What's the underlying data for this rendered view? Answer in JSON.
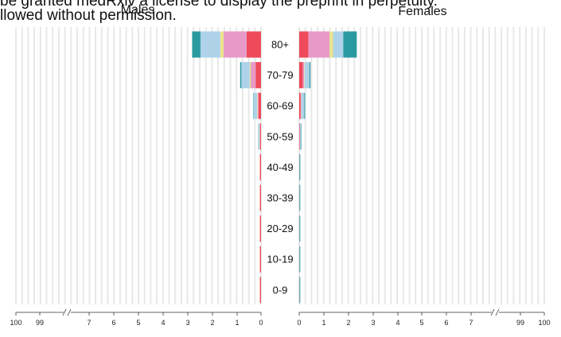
{
  "notice_lines": [
    "be granted medRxiv a license to display the preprint in perpetuity.",
    "llowed without permission."
  ],
  "chart_data": {
    "type": "bar",
    "subtype": "population-pyramid-stacked",
    "panels": [
      "Males",
      "Females"
    ],
    "categories": [
      "80+",
      "70-79",
      "60-69",
      "50-59",
      "40-49",
      "30-39",
      "20-29",
      "10-19",
      "0-9"
    ],
    "x_ticks": [
      "100",
      "99",
      "7",
      "6",
      "5",
      "4",
      "3",
      "2",
      "1",
      "0"
    ],
    "axis_break_between": [
      "99",
      "7"
    ],
    "grid": true,
    "series_colors": [
      "#ef4a5a",
      "#e89ac7",
      "#e8e48a",
      "#aed3e9",
      "#2b9aa0"
    ],
    "males": [
      [
        0.59,
        0.94,
        0.13,
        0.81,
        0.34
      ],
      [
        0.22,
        0.2,
        0.04,
        0.34,
        0.05
      ],
      [
        0.1,
        0.04,
        0.02,
        0.13,
        0.02
      ],
      [
        0.04,
        0.01,
        0.01,
        0.04,
        0.01
      ],
      [
        0.02,
        0.0,
        0.0,
        0.01,
        0.0
      ],
      [
        0.01,
        0.0,
        0.0,
        0.0,
        0.0
      ],
      [
        0.01,
        0.0,
        0.0,
        0.0,
        0.0
      ],
      [
        0.01,
        0.0,
        0.0,
        0.0,
        0.0
      ],
      [
        0.01,
        0.0,
        0.0,
        0.0,
        0.0
      ]
    ],
    "females": [
      [
        0.38,
        0.86,
        0.14,
        0.42,
        0.55
      ],
      [
        0.15,
        0.05,
        0.02,
        0.2,
        0.04
      ],
      [
        0.06,
        0.02,
        0.01,
        0.12,
        0.03
      ],
      [
        0.02,
        0.01,
        0.0,
        0.04,
        0.02
      ],
      [
        0.01,
        0.0,
        0.0,
        0.02,
        0.01
      ],
      [
        0.01,
        0.0,
        0.0,
        0.0,
        0.0
      ],
      [
        0.01,
        0.0,
        0.0,
        0.0,
        0.0
      ],
      [
        0.0,
        0.0,
        0.0,
        0.0,
        0.01
      ],
      [
        0.01,
        0.0,
        0.0,
        0.0,
        0.0
      ]
    ]
  }
}
